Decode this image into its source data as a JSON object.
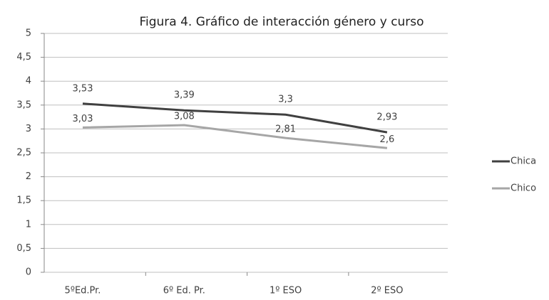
{
  "chart_data": {
    "type": "line",
    "title": "Figura 4. Gráfico de interacción género y curso",
    "categories": [
      "5ºEd.Pr.",
      "6º Ed. Pr.",
      "1º ESO",
      "2º ESO"
    ],
    "series": [
      {
        "name": "Chica",
        "color": "#404040",
        "values": [
          3.53,
          3.39,
          3.3,
          2.93
        ],
        "value_labels": [
          "3,53",
          "3,39",
          "3,3",
          "2,93"
        ]
      },
      {
        "name": "Chico",
        "color": "#a6a6a6",
        "values": [
          3.03,
          3.08,
          2.81,
          2.6
        ],
        "value_labels": [
          "3,03",
          "3,08",
          "2,81",
          "2,6"
        ]
      }
    ],
    "ylim": [
      0,
      5
    ],
    "yticks": [
      0,
      {
        "value": 0.5,
        "label": "0,5"
      },
      1,
      {
        "value": 1.5,
        "label": "1,5"
      },
      2,
      {
        "value": 2.5,
        "label": "2,5"
      },
      3,
      {
        "value": 3.5,
        "label": "3,5"
      },
      4,
      {
        "value": 4.5,
        "label": "4,5"
      },
      5
    ],
    "grid": true,
    "legend": "right"
  }
}
